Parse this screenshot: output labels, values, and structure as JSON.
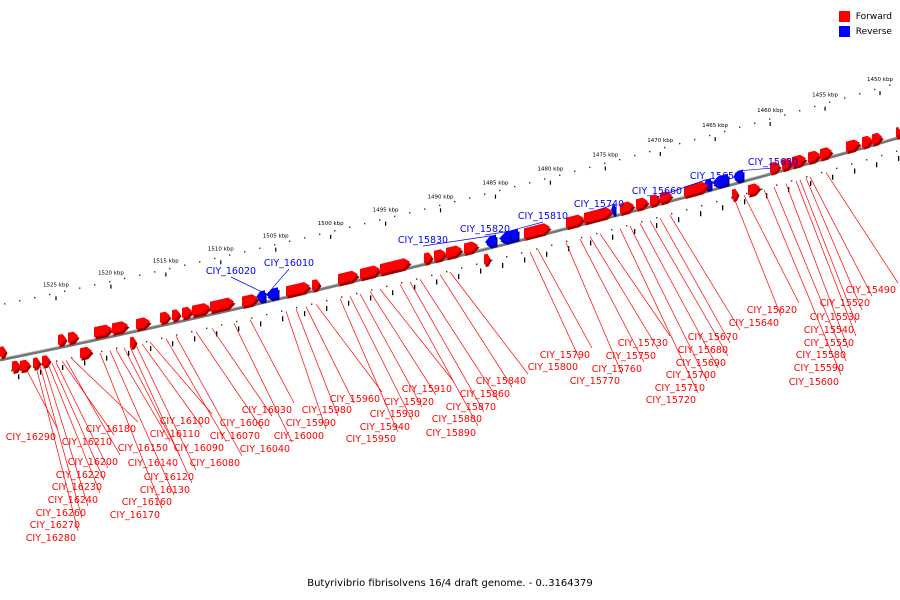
{
  "legend": {
    "forward_label": "Forward",
    "reverse_label": "Reverse",
    "forward_color": "#ff0000",
    "reverse_color": "#0000ff"
  },
  "caption": "Butyrivibrio fibrisolvens 16/4 draft genome. - 0..3164379",
  "scale": {
    "unit": "kbp",
    "labels": [
      "1525 kbp",
      "1520 kbp",
      "1515 kbp",
      "1510 kbp",
      "1505 kbp",
      "1500 kbp",
      "1495 kbp",
      "1490 kbp",
      "1485 kbp",
      "1480 kbp",
      "1475 kbp",
      "1470 kbp",
      "1465 kbp",
      "1460 kbp",
      "1455 kbp",
      "1450 kbp"
    ]
  },
  "reverse_genes": [
    "CIY_15630",
    "CIY_15650",
    "CIY_15660",
    "CIY_15740",
    "CIY_15810",
    "CIY_15820",
    "CIY_15830",
    "CIY_16010",
    "CIY_16020"
  ],
  "forward_genes": [
    "CIY_15490",
    "CIY_15520",
    "CIY_15530",
    "CIY_15540",
    "CIY_15550",
    "CIY_15580",
    "CIY_15590",
    "CIY_15600",
    "CIY_15620",
    "CIY_15640",
    "CIY_15670",
    "CIY_15680",
    "CIY_15690",
    "CIY_15700",
    "CIY_15710",
    "CIY_15720",
    "CIY_15730",
    "CIY_15750",
    "CIY_15760",
    "CIY_15770",
    "CIY_15790",
    "CIY_15800",
    "CIY_15840",
    "CIY_15860",
    "CIY_15870",
    "CIY_15880",
    "CIY_15890",
    "CIY_15910",
    "CIY_15920",
    "CIY_15930",
    "CIY_15940",
    "CIY_15950",
    "CIY_15960",
    "CIY_15980",
    "CIY_15990",
    "CIY_16000",
    "CIY_16030",
    "CIY_16040",
    "CIY_16060",
    "CIY_16070",
    "CIY_16080",
    "CIY_16090",
    "CIY_16100",
    "CIY_16110",
    "CIY_16120",
    "CIY_16130",
    "CIY_16140",
    "CIY_16150",
    "CIY_16160",
    "CIY_16170",
    "CIY_16180",
    "CIY_16200",
    "CIY_16210",
    "CIY_16220",
    "CIY_16230",
    "CIY_16240",
    "CIY_16260",
    "CIY_16270",
    "CIY_16280",
    "CIY_16290"
  ]
}
